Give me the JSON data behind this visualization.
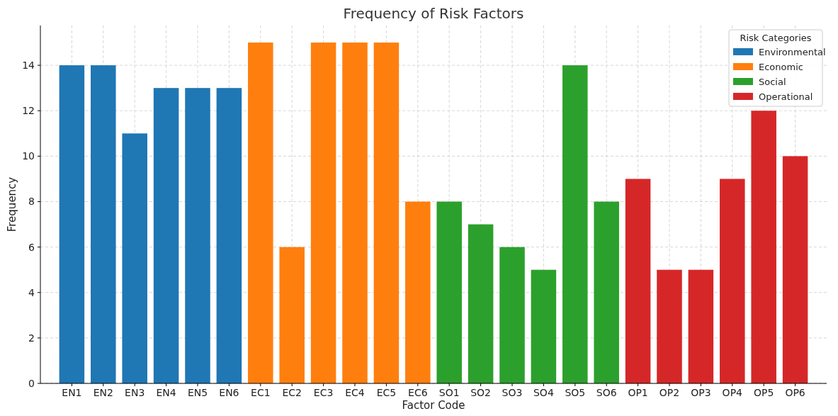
{
  "chart_data": {
    "type": "bar",
    "title": "Frequency of Risk Factors",
    "xlabel": "Factor Code",
    "ylabel": "Frequency",
    "legend_title": "Risk Categories",
    "legend": "top right",
    "grid": true,
    "categories": [
      "EN1",
      "EN2",
      "EN3",
      "EN4",
      "EN5",
      "EN6",
      "EC1",
      "EC2",
      "EC3",
      "EC4",
      "EC5",
      "EC6",
      "SO1",
      "SO2",
      "SO3",
      "SO4",
      "SO5",
      "SO6",
      "OP1",
      "OP2",
      "OP3",
      "OP4",
      "OP5",
      "OP6"
    ],
    "ylim": [
      0,
      15.75
    ],
    "yticks": [
      0,
      2,
      4,
      6,
      8,
      10,
      12,
      14
    ],
    "series": [
      {
        "name": "Environmental",
        "color": "#1f77b4",
        "values": [
          14,
          14,
          11,
          13,
          13,
          13,
          null,
          null,
          null,
          null,
          null,
          null,
          null,
          null,
          null,
          null,
          null,
          null,
          null,
          null,
          null,
          null,
          null,
          null
        ]
      },
      {
        "name": "Economic",
        "color": "#ff7f0e",
        "values": [
          null,
          null,
          null,
          null,
          null,
          null,
          15,
          6,
          15,
          15,
          15,
          8,
          null,
          null,
          null,
          null,
          null,
          null,
          null,
          null,
          null,
          null,
          null,
          null
        ]
      },
      {
        "name": "Social",
        "color": "#2ca02c",
        "values": [
          null,
          null,
          null,
          null,
          null,
          null,
          null,
          null,
          null,
          null,
          null,
          null,
          8,
          7,
          6,
          5,
          14,
          8,
          null,
          null,
          null,
          null,
          null,
          null
        ]
      },
      {
        "name": "Operational",
        "color": "#d62728",
        "values": [
          null,
          null,
          null,
          null,
          null,
          null,
          null,
          null,
          null,
          null,
          null,
          null,
          null,
          null,
          null,
          null,
          null,
          null,
          9,
          5,
          5,
          9,
          12,
          10
        ]
      }
    ]
  }
}
